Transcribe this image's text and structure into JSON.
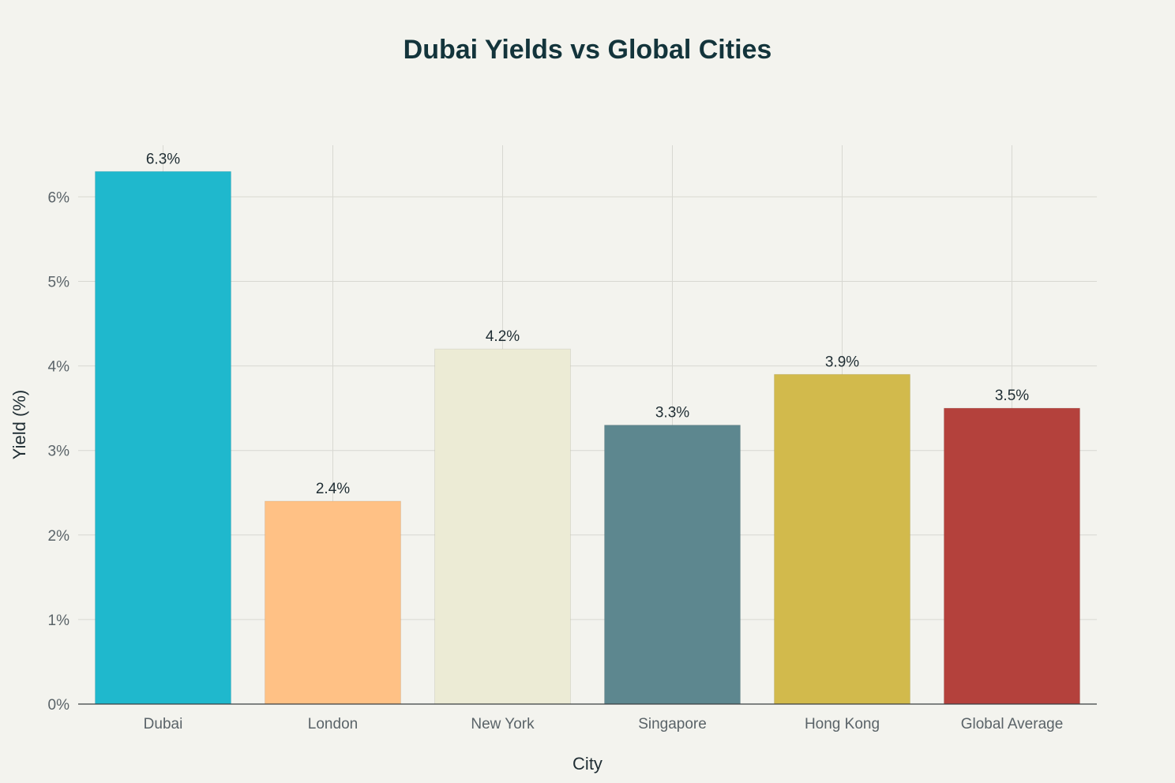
{
  "chart_data": {
    "type": "bar",
    "title": "Dubai Yields vs Global Cities",
    "xlabel": "City",
    "ylabel": "Yield (%)",
    "categories": [
      "Dubai",
      "London",
      "New York",
      "Singapore",
      "Hong Kong",
      "Global Average"
    ],
    "values": [
      6.3,
      2.4,
      4.2,
      3.3,
      3.9,
      3.5
    ],
    "value_labels": [
      "6.3%",
      "2.4%",
      "4.2%",
      "3.3%",
      "3.9%",
      "3.5%"
    ],
    "colors": [
      "#1fb8cd",
      "#ffc185",
      "#eceBD5",
      "#5d878f",
      "#d2ba4c",
      "#b4413c"
    ],
    "yticks": [
      0,
      1,
      2,
      3,
      4,
      5,
      6
    ],
    "ytick_labels": [
      "0%",
      "1%",
      "2%",
      "3%",
      "4%",
      "5%",
      "6%"
    ],
    "ylim": [
      0,
      6.6
    ],
    "grid": true,
    "legend": "none"
  }
}
